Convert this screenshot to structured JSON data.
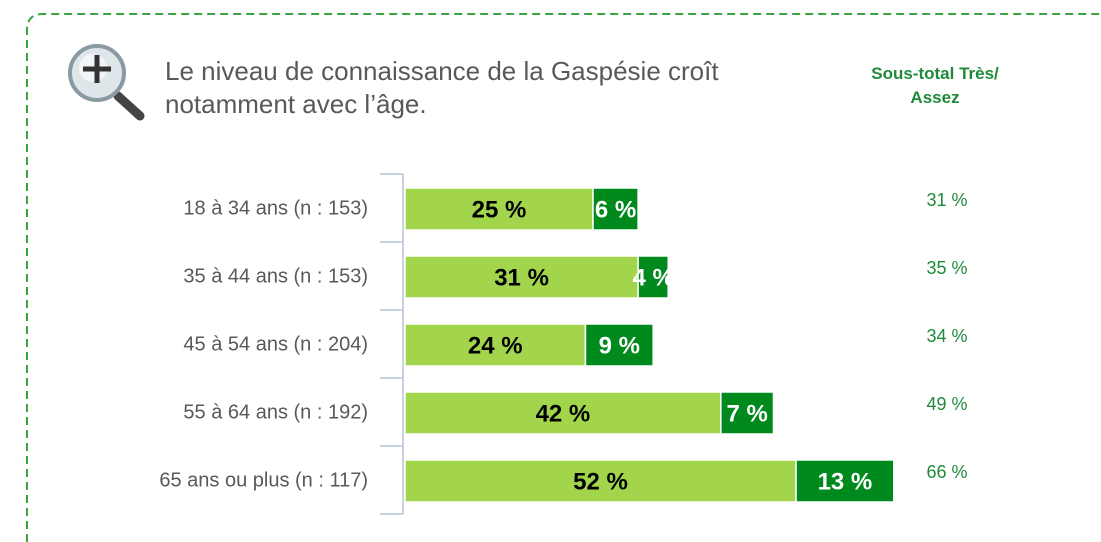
{
  "chart_data": {
    "type": "stacked-barh",
    "title": "Le niveau de connaissance de la Gaspésie croît notamment avec l’âge.",
    "categories": [
      "18 à 34 ans (n : 153)",
      "35 à 44 ans (n : 153)",
      "45 à 54 ans (n : 204)",
      "55 à 64 ans (n : 192)",
      "65 ans ou plus (n : 117)"
    ],
    "series": [
      {
        "color": "#a2d54c",
        "label_color": "#000000",
        "values": [
          25,
          31,
          24,
          42,
          52
        ],
        "value_labels": [
          "25 %",
          "31 %",
          "24 %",
          "42 %",
          "52 %"
        ]
      },
      {
        "color": "#008a1e",
        "label_color": "#ffffff",
        "values": [
          6,
          4,
          9,
          7,
          13
        ],
        "value_labels": [
          "6 %",
          "4 %",
          "9 %",
          "7 %",
          "13 %"
        ]
      }
    ],
    "subtotal": {
      "title": "Sous-total Très/ Assez",
      "color": "#1e8a3a",
      "values": [
        31,
        35,
        34,
        49,
        66
      ],
      "value_labels": [
        "31 %",
        "35 %",
        "34 %",
        "49 %",
        "66 %"
      ]
    }
  }
}
